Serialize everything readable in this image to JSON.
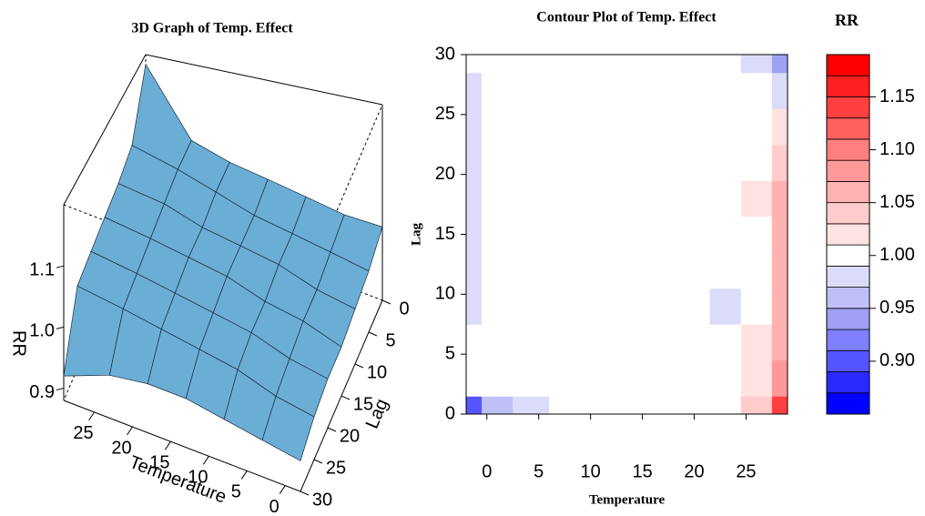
{
  "chart_data": [
    {
      "type": "surface",
      "title": "3D Graph of Temp. Effect",
      "xlabel": "Temperature",
      "ylabel": "Lag",
      "zlabel": "RR",
      "x": [
        -2,
        3,
        8,
        13,
        18,
        23,
        29
      ],
      "y": [
        0,
        5,
        10,
        15,
        20,
        25,
        30
      ],
      "z": [
        [
          1.0,
          1.0,
          1.01,
          1.02,
          1.03,
          1.05,
          1.18
        ],
        [
          0.98,
          0.99,
          1.0,
          1.01,
          1.03,
          1.05,
          1.07
        ],
        [
          0.97,
          0.98,
          1.0,
          1.01,
          1.02,
          1.04,
          1.05
        ],
        [
          0.96,
          0.98,
          0.99,
          1.01,
          1.02,
          1.03,
          1.04
        ],
        [
          0.96,
          0.97,
          0.99,
          1.0,
          1.01,
          1.02,
          1.03
        ],
        [
          0.95,
          0.96,
          0.98,
          0.99,
          1.0,
          1.01,
          1.02
        ],
        [
          0.93,
          0.94,
          0.95,
          0.96,
          0.96,
          0.95,
          0.92
        ]
      ],
      "xlim": [
        -2,
        29
      ],
      "ylim": [
        0,
        30
      ],
      "zlim": [
        0.88,
        1.2
      ],
      "xticks": [
        0,
        5,
        10,
        15,
        20,
        25
      ],
      "yticks": [
        0,
        5,
        10,
        15,
        20,
        25,
        30
      ],
      "zticks": [
        0.9,
        {
          "value": 1,
          "label": "1.0"
        },
        1.1
      ],
      "color": "#6aaed6"
    },
    {
      "type": "contour",
      "title": "Contour Plot of Temp. Effect",
      "xlabel": "Temperature",
      "ylabel": "Lag",
      "x": [
        -2,
        1,
        4,
        8,
        12,
        16,
        20,
        23,
        26,
        29
      ],
      "y": [
        0,
        3,
        6,
        9,
        12,
        15,
        18,
        21,
        24,
        27,
        30
      ],
      "z": [
        [
          0.9,
          0.95,
          0.98,
          0.99,
          1.0,
          1.0,
          1.0,
          1.0,
          1.04,
          1.14
        ],
        [
          1.0,
          1.0,
          1.0,
          1.0,
          1.0,
          1.0,
          1.0,
          1.0,
          1.02,
          1.08
        ],
        [
          0.99,
          1.0,
          1.0,
          1.0,
          1.0,
          1.0,
          1.0,
          1.0,
          1.01,
          1.05
        ],
        [
          0.98,
          1.0,
          1.0,
          1.0,
          1.0,
          1.0,
          1.0,
          0.98,
          1.0,
          1.05
        ],
        [
          0.98,
          1.0,
          1.0,
          1.0,
          1.0,
          1.0,
          1.0,
          0.99,
          1.0,
          1.06
        ],
        [
          0.97,
          1.0,
          1.0,
          1.0,
          1.0,
          1.0,
          1.0,
          1.0,
          1.0,
          1.06
        ],
        [
          0.97,
          1.0,
          1.0,
          1.0,
          1.0,
          1.0,
          1.0,
          1.0,
          1.01,
          1.05
        ],
        [
          0.98,
          1.0,
          1.0,
          1.0,
          1.0,
          1.0,
          1.0,
          1.0,
          1.0,
          1.03
        ],
        [
          0.98,
          1.0,
          1.0,
          1.0,
          1.0,
          1.0,
          1.0,
          1.0,
          1.0,
          1.01
        ],
        [
          0.98,
          1.0,
          1.0,
          1.0,
          1.0,
          1.0,
          1.0,
          1.0,
          0.99,
          0.97
        ],
        [
          0.99,
          1.0,
          1.0,
          1.0,
          1.0,
          1.0,
          1.0,
          1.0,
          0.97,
          0.93
        ]
      ],
      "xlim": [
        -2,
        29
      ],
      "ylim": [
        0,
        30
      ],
      "xticks": [
        0,
        5,
        10,
        15,
        20,
        25
      ],
      "yticks": [
        0,
        5,
        10,
        15,
        20,
        25,
        30
      ],
      "colorbar": {
        "title": "RR",
        "levels": [
          0.85,
          0.87,
          0.89,
          0.91,
          0.93,
          0.95,
          0.97,
          0.99,
          1.01,
          1.03,
          1.05,
          1.07,
          1.09,
          1.11,
          1.13,
          1.15,
          1.17,
          1.19
        ],
        "colors": [
          "#0000ff",
          "#2a2aff",
          "#5555ff",
          "#7f7fff",
          "#a0a0f5",
          "#c0c0f8",
          "#dcdcfa",
          "#ffffff",
          "#ffe2e2",
          "#ffcccc",
          "#ffb2b2",
          "#ff9999",
          "#ff7f7f",
          "#ff6060",
          "#ff4040",
          "#ff2020",
          "#ff0000"
        ],
        "ticks": [
          {
            "value": 0.9,
            "label": "0.90"
          },
          0.95,
          {
            "value": 1,
            "label": "1.00"
          },
          1.05,
          {
            "value": 1.1,
            "label": "1.10"
          },
          1.15
        ]
      }
    }
  ]
}
